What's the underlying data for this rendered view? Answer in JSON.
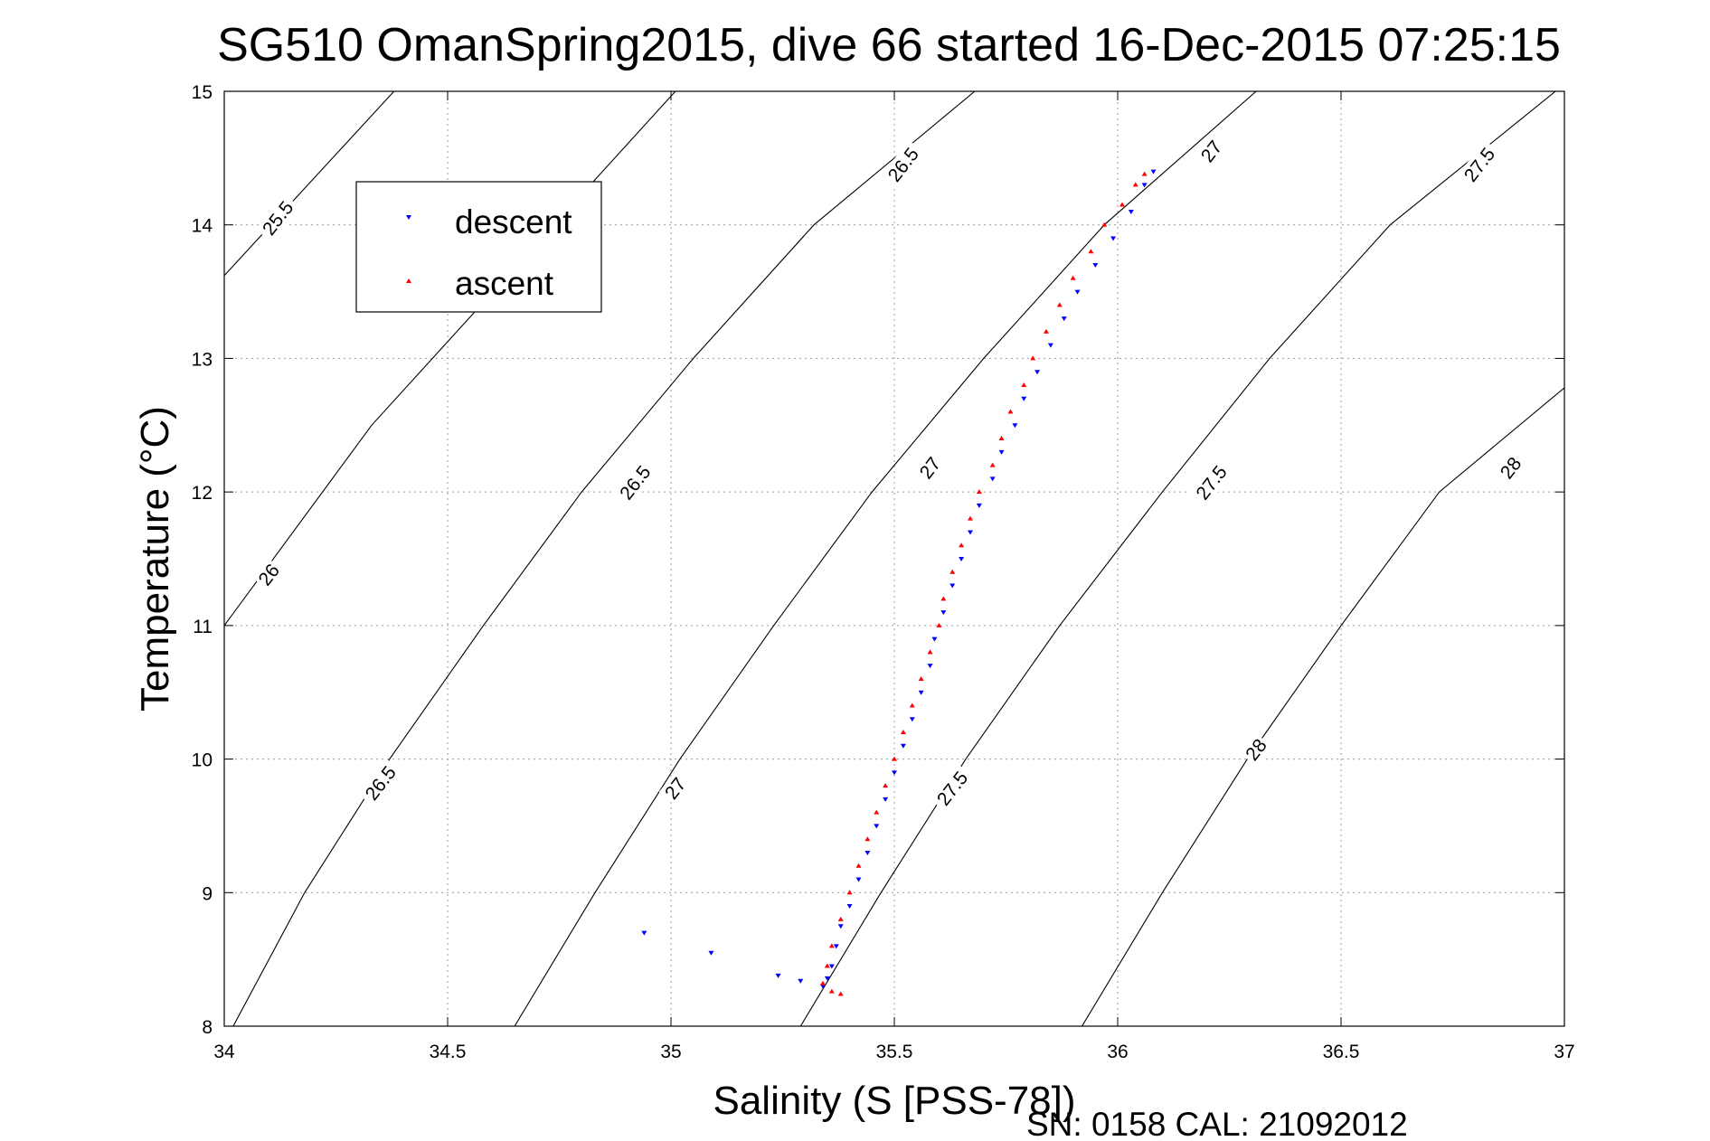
{
  "chart_data": {
    "type": "scatter",
    "title": "SG510 OmanSpring2015, dive 66 started 16-Dec-2015 07:25:15",
    "xlabel": "Salinity (S [PSS-78])",
    "ylabel": "Temperature (°C)",
    "xlim": [
      34,
      37
    ],
    "ylim": [
      8,
      15
    ],
    "x_ticks": [
      "34",
      "34.5",
      "35",
      "35.5",
      "36",
      "36.5",
      "37"
    ],
    "y_ticks": [
      "8",
      "9",
      "10",
      "11",
      "12",
      "13",
      "14",
      "15"
    ],
    "grid": true,
    "legend_position": "top-left",
    "footer": "SN: 0158  CAL: 21092012",
    "series": [
      {
        "name": "descent",
        "color": "#0000ff",
        "marker": "triangle-down",
        "points": [
          [
            34.94,
            8.7
          ],
          [
            35.09,
            8.55
          ],
          [
            35.24,
            8.38
          ],
          [
            35.29,
            8.34
          ],
          [
            35.34,
            8.3
          ],
          [
            35.35,
            8.36
          ],
          [
            35.36,
            8.45
          ],
          [
            35.37,
            8.6
          ],
          [
            35.38,
            8.75
          ],
          [
            35.4,
            8.9
          ],
          [
            35.42,
            9.1
          ],
          [
            35.44,
            9.3
          ],
          [
            35.46,
            9.5
          ],
          [
            35.48,
            9.7
          ],
          [
            35.5,
            9.9
          ],
          [
            35.52,
            10.1
          ],
          [
            35.54,
            10.3
          ],
          [
            35.56,
            10.5
          ],
          [
            35.58,
            10.7
          ],
          [
            35.59,
            10.9
          ],
          [
            35.61,
            11.1
          ],
          [
            35.63,
            11.3
          ],
          [
            35.65,
            11.5
          ],
          [
            35.67,
            11.7
          ],
          [
            35.69,
            11.9
          ],
          [
            35.72,
            12.1
          ],
          [
            35.74,
            12.3
          ],
          [
            35.77,
            12.5
          ],
          [
            35.79,
            12.7
          ],
          [
            35.82,
            12.9
          ],
          [
            35.85,
            13.1
          ],
          [
            35.88,
            13.3
          ],
          [
            35.91,
            13.5
          ],
          [
            35.95,
            13.7
          ],
          [
            35.99,
            13.9
          ],
          [
            36.03,
            14.1
          ],
          [
            36.06,
            14.3
          ],
          [
            36.08,
            14.4
          ]
        ]
      },
      {
        "name": "ascent",
        "color": "#ff0000",
        "marker": "triangle-up",
        "points": [
          [
            35.38,
            8.24
          ],
          [
            35.36,
            8.26
          ],
          [
            35.34,
            8.32
          ],
          [
            35.35,
            8.45
          ],
          [
            35.36,
            8.6
          ],
          [
            35.38,
            8.8
          ],
          [
            35.4,
            9.0
          ],
          [
            35.42,
            9.2
          ],
          [
            35.44,
            9.4
          ],
          [
            35.46,
            9.6
          ],
          [
            35.48,
            9.8
          ],
          [
            35.5,
            10.0
          ],
          [
            35.52,
            10.2
          ],
          [
            35.54,
            10.4
          ],
          [
            35.56,
            10.6
          ],
          [
            35.58,
            10.8
          ],
          [
            35.6,
            11.0
          ],
          [
            35.61,
            11.2
          ],
          [
            35.63,
            11.4
          ],
          [
            35.65,
            11.6
          ],
          [
            35.67,
            11.8
          ],
          [
            35.69,
            12.0
          ],
          [
            35.72,
            12.2
          ],
          [
            35.74,
            12.4
          ],
          [
            35.76,
            12.6
          ],
          [
            35.79,
            12.8
          ],
          [
            35.81,
            13.0
          ],
          [
            35.84,
            13.2
          ],
          [
            35.87,
            13.4
          ],
          [
            35.9,
            13.6
          ],
          [
            35.94,
            13.8
          ],
          [
            35.97,
            14.0
          ],
          [
            36.01,
            14.15
          ],
          [
            36.04,
            14.3
          ],
          [
            36.06,
            14.38
          ]
        ]
      }
    ],
    "isopycnals": [
      {
        "label": "25.5",
        "points": [
          [
            34.0,
            13.62
          ],
          [
            34.38,
            15.0
          ]
        ],
        "label_at": [
          34.12,
          14.0
        ]
      },
      {
        "label": "26",
        "points": [
          [
            34.0,
            11.0
          ],
          [
            34.33,
            12.5
          ],
          [
            35.01,
            15.0
          ]
        ],
        "label_at": [
          34.1,
          11.4
        ]
      },
      {
        "label": "26.5",
        "points": [
          [
            34.02,
            8.0
          ],
          [
            34.18,
            9.0
          ],
          [
            34.37,
            10.0
          ],
          [
            34.58,
            11.0
          ],
          [
            34.8,
            12.0
          ],
          [
            35.05,
            13.0
          ],
          [
            35.32,
            14.0
          ],
          [
            35.68,
            15.0
          ]
        ],
        "label_at": [
          34.35,
          9.85
        ]
      },
      {
        "label": "27",
        "points": [
          [
            34.65,
            8.0
          ],
          [
            34.83,
            9.0
          ],
          [
            35.02,
            10.0
          ],
          [
            35.23,
            11.0
          ],
          [
            35.45,
            12.0
          ],
          [
            35.7,
            13.0
          ],
          [
            35.97,
            14.0
          ],
          [
            36.31,
            15.0
          ]
        ],
        "label_at": [
          35.0,
          9.85
        ]
      },
      {
        "label": "27.5",
        "points": [
          [
            35.29,
            8.0
          ],
          [
            35.47,
            9.0
          ],
          [
            35.66,
            10.0
          ],
          [
            35.87,
            11.0
          ],
          [
            36.1,
            12.0
          ],
          [
            36.34,
            13.0
          ],
          [
            36.61,
            14.0
          ],
          [
            36.98,
            15.0
          ]
        ],
        "label_at": [
          35.63,
          9.85
        ]
      },
      {
        "label": "28",
        "points": [
          [
            35.92,
            8.0
          ],
          [
            36.1,
            9.0
          ],
          [
            36.29,
            10.0
          ],
          [
            36.5,
            11.0
          ],
          [
            36.72,
            12.0
          ],
          [
            37.0,
            12.78
          ]
        ],
        "label_at": [
          36.3,
          10.15
        ]
      }
    ],
    "isopycnal_labels": [
      {
        "text": "25.5",
        "x": 34.12,
        "y": 14.05
      },
      {
        "text": "26",
        "x": 34.1,
        "y": 11.38
      },
      {
        "text": "26.5",
        "x": 34.35,
        "y": 9.82
      },
      {
        "text": "26.5",
        "x": 34.92,
        "y": 12.07
      },
      {
        "text": "26.5",
        "x": 35.52,
        "y": 14.45
      },
      {
        "text": "27",
        "x": 35.01,
        "y": 9.78
      },
      {
        "text": "27",
        "x": 35.58,
        "y": 12.18
      },
      {
        "text": "27",
        "x": 36.21,
        "y": 14.55
      },
      {
        "text": "27.5",
        "x": 35.63,
        "y": 9.78
      },
      {
        "text": "27.5",
        "x": 36.21,
        "y": 12.07
      },
      {
        "text": "27.5",
        "x": 36.81,
        "y": 14.45
      },
      {
        "text": "28",
        "x": 36.31,
        "y": 10.07
      },
      {
        "text": "28",
        "x": 36.88,
        "y": 12.18
      }
    ]
  }
}
